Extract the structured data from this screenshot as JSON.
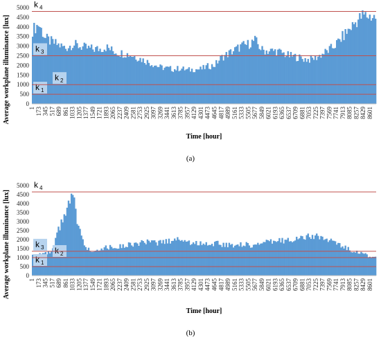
{
  "chart_data": [
    {
      "type": "bar",
      "panel_label": "(a)",
      "xlabel": "Time [hour]",
      "ylabel": "Average workplane illuminance [lux]",
      "ylim": [
        0,
        5000
      ],
      "yticks": [
        0,
        500,
        1000,
        1500,
        2000,
        2500,
        3000,
        3500,
        4000,
        4500,
        5000
      ],
      "xlim": [
        1,
        8760
      ],
      "xticks": [
        1,
        173,
        345,
        517,
        689,
        861,
        1033,
        1205,
        1377,
        1549,
        1721,
        1893,
        2065,
        2237,
        2409,
        2581,
        2753,
        2925,
        3097,
        3269,
        3441,
        3613,
        3785,
        3957,
        4129,
        4301,
        4473,
        4645,
        4817,
        4989,
        5161,
        5333,
        5505,
        5677,
        5849,
        6021,
        6193,
        6365,
        6537,
        6709,
        6881,
        7053,
        7225,
        7397,
        7569,
        7741,
        7913,
        8085,
        8257,
        8429,
        8601
      ],
      "color": "#5b9bd5",
      "threshold_color": "#c0504d",
      "thresholds": [
        {
          "label": "k",
          "sub": "1",
          "value": 500
        },
        {
          "label": "k",
          "sub": "2",
          "value": 1000
        },
        {
          "label": "k",
          "sub": "3",
          "value": 2500
        },
        {
          "label": "k",
          "sub": "4",
          "value": 4800
        }
      ],
      "series": [
        {
          "x": [
            1,
            173,
            345,
            517,
            689,
            861,
            1033,
            1205,
            1377,
            1549,
            1721,
            1893,
            2065,
            2237,
            2409,
            2581,
            2753,
            2925,
            3097,
            3269,
            3441,
            3613,
            3785,
            3957,
            4129,
            4301,
            4473,
            4645,
            4817,
            4989,
            5161,
            5333,
            5505,
            5677,
            5849,
            6021,
            6193,
            6365,
            6537,
            6709,
            6881,
            7053,
            7225,
            7397,
            7569,
            7741,
            7913,
            8085,
            8257,
            8429,
            8601,
            8760
          ],
          "values": [
            3800,
            4150,
            3400,
            3200,
            3050,
            2900,
            3100,
            3000,
            2900,
            2850,
            2850,
            2950,
            2750,
            2650,
            2600,
            2500,
            2350,
            2200,
            2050,
            1900,
            1850,
            1800,
            1850,
            1750,
            1800,
            1800,
            1950,
            2000,
            2400,
            2600,
            2800,
            3000,
            3100,
            3300,
            2800,
            2750,
            2750,
            2650,
            2500,
            2450,
            2350,
            2300,
            2400,
            2600,
            2800,
            3100,
            3500,
            3900,
            4300,
            4600,
            4550,
            4500
          ]
        }
      ]
    },
    {
      "type": "bar",
      "panel_label": "(b)",
      "xlabel": "Time [hour]",
      "ylabel": "Average workplane illuminance [lux]",
      "ylim": [
        0,
        5000
      ],
      "yticks": [
        0,
        500,
        1000,
        1500,
        2000,
        2500,
        3000,
        3500,
        4000,
        4500,
        5000
      ],
      "xlim": [
        1,
        8760
      ],
      "xticks": [
        1,
        173,
        345,
        517,
        689,
        861,
        1033,
        1205,
        1377,
        1549,
        1721,
        1893,
        2065,
        2237,
        2409,
        2581,
        2753,
        2925,
        3097,
        3269,
        3441,
        3613,
        3785,
        3957,
        4129,
        4301,
        4473,
        4645,
        4817,
        4989,
        5161,
        5333,
        5505,
        5677,
        5849,
        6021,
        6193,
        6365,
        6537,
        6709,
        6881,
        7053,
        7225,
        7397,
        7569,
        7741,
        7913,
        8085,
        8257,
        8429,
        8601
      ],
      "color": "#5b9bd5",
      "threshold_color": "#c0504d",
      "thresholds": [
        {
          "label": "k",
          "sub": "1",
          "value": 500
        },
        {
          "label": "k",
          "sub": "2",
          "value": 1000
        },
        {
          "label": "k",
          "sub": "3",
          "value": 1350
        },
        {
          "label": "k",
          "sub": "4",
          "value": 4650
        }
      ],
      "series": [
        {
          "x": [
            1,
            173,
            345,
            517,
            689,
            861,
            1033,
            1205,
            1377,
            1549,
            1721,
            1893,
            2065,
            2237,
            2409,
            2581,
            2753,
            2925,
            3097,
            3269,
            3441,
            3613,
            3785,
            3957,
            4129,
            4301,
            4473,
            4645,
            4817,
            4989,
            5161,
            5333,
            5505,
            5677,
            5849,
            6021,
            6193,
            6365,
            6537,
            6709,
            6881,
            7053,
            7225,
            7397,
            7569,
            7741,
            7913,
            8085,
            8257,
            8429,
            8601,
            8760
          ],
          "values": [
            1150,
            1250,
            1200,
            1300,
            2600,
            3400,
            4500,
            2500,
            1500,
            1400,
            1500,
            1550,
            1600,
            1600,
            1700,
            1750,
            1800,
            1850,
            1800,
            1850,
            1900,
            2000,
            2050,
            1850,
            1800,
            1800,
            1750,
            1800,
            1750,
            1700,
            1700,
            1750,
            1700,
            1700,
            1800,
            1850,
            1900,
            1950,
            2000,
            2050,
            2100,
            2150,
            2200,
            2100,
            1950,
            1800,
            1600,
            1450,
            1350,
            1200,
            1050,
            1000
          ]
        }
      ]
    }
  ]
}
